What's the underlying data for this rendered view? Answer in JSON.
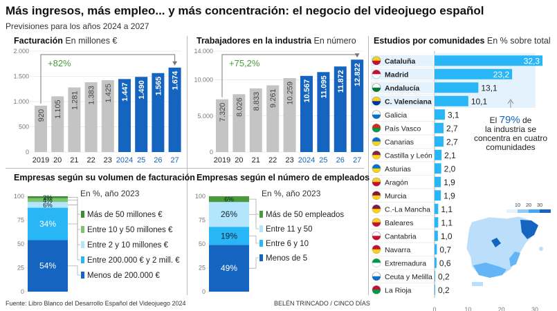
{
  "title": "Más ingresos, más empleo... y más concentración: el negocio del videojuego español",
  "subtitle": "Previsiones para los años 2024 a 2027",
  "footer": {
    "source": "Fuente: Libro Blanco del Desarrollo Español del Videojuego 2024",
    "credit": "BELÉN TRINCADO / CINCO DÍAS"
  },
  "colors": {
    "gray": "#c4c4c4",
    "blue": "#1565c0",
    "green": "#4a9a3c",
    "light_blue": "#29b6f6",
    "dark_blue": "#0d47a1"
  },
  "chart_data": [
    {
      "id": "facturacion",
      "type": "bar",
      "title": "Facturación",
      "unit": "En millones €",
      "categories": [
        "2019",
        "20",
        "21",
        "22",
        "23",
        "2024",
        "25",
        "26",
        "27"
      ],
      "values": [
        920,
        1105,
        1281,
        1383,
        1425,
        1447,
        1490,
        1565,
        1674
      ],
      "value_labels": [
        "920",
        "1.105",
        "1.281",
        "1.383",
        "1.425",
        "1.447",
        "1.490",
        "1.565",
        "1.674"
      ],
      "forecast_from": "2024",
      "yticks": [
        0,
        500,
        1000,
        1500,
        2000
      ],
      "ytick_labels": [
        "0",
        "500",
        "1.000",
        "1.500",
        "2.000"
      ],
      "ylim": [
        0,
        2000
      ],
      "annotation": "+82%"
    },
    {
      "id": "trabajadores",
      "type": "bar",
      "title": "Trabajadores en la industria",
      "unit": "En número",
      "categories": [
        "2019",
        "20",
        "21",
        "22",
        "23",
        "2024",
        "25",
        "26",
        "27"
      ],
      "values": [
        7320,
        8026,
        8833,
        9261,
        10259,
        10567,
        11095,
        11872,
        12822
      ],
      "value_labels": [
        "7.320",
        "8.026",
        "8.833",
        "9.261",
        "10.259",
        "10.567",
        "11.095",
        "11.872",
        "12.822"
      ],
      "forecast_from": "2024",
      "yticks": [
        0,
        5000,
        10000,
        14000
      ],
      "ytick_labels": [
        "0",
        "5.000",
        "10.000",
        "14.000"
      ],
      "ylim": [
        0,
        14000
      ],
      "annotation": "+75,2%"
    },
    {
      "id": "volumen",
      "type": "bar",
      "stacked": true,
      "title": "Empresas según su volumen de facturación",
      "unit": "En %, año 2023",
      "yticks": [
        0,
        25,
        50,
        75,
        100
      ],
      "ytick_labels": [
        "0",
        "25",
        "50",
        "75",
        "100"
      ],
      "ylim": [
        0,
        100
      ],
      "segments": [
        {
          "name": "Menos de 200.000 €",
          "value": 54,
          "label": "54%",
          "color": "#1565c0"
        },
        {
          "name": "Entre 200.000 € y 2 mill. €",
          "value": 34,
          "label": "34%",
          "color": "#29b6f6"
        },
        {
          "name": "Entre 2 y 10 millones €",
          "value": 6,
          "label": "6%",
          "color": "#b3e5fc"
        },
        {
          "name": "Entre 10 y 50 millones €",
          "value": 4,
          "label": "4%",
          "color": "#7cc36e"
        },
        {
          "name": "Más de 50 millones €",
          "value": 2,
          "label": "2%",
          "color": "#3d8b37"
        }
      ]
    },
    {
      "id": "empleados",
      "type": "bar",
      "stacked": true,
      "title": "Empresas según el número de empleados",
      "unit": "En %, año 2023",
      "yticks": [
        0,
        25,
        50,
        75,
        100
      ],
      "ytick_labels": [
        "0",
        "25",
        "50",
        "75",
        "100"
      ],
      "ylim": [
        0,
        100
      ],
      "segments": [
        {
          "name": "Menos de 5",
          "value": 49,
          "label": "49%",
          "color": "#1565c0"
        },
        {
          "name": "Entre 6 y 10",
          "value": 19,
          "label": "19%",
          "color": "#29b6f6"
        },
        {
          "name": "Entre 11 y 50",
          "value": 26,
          "label": "26%",
          "color": "#b3e5fc"
        },
        {
          "name": "Más de 50 empleados",
          "value": 6,
          "label": "6%",
          "color": "#4a9a3c"
        }
      ]
    },
    {
      "id": "comunidades",
      "type": "bar",
      "orientation": "horizontal",
      "title": "Estudios por comunidades",
      "unit": "En % sobre total",
      "xticks": [
        0,
        10,
        20,
        30
      ],
      "xtick_labels": [
        "0",
        "10",
        "20",
        "30"
      ],
      "xlim": [
        0,
        30
      ],
      "categories": [
        "Cataluña",
        "Madrid",
        "Andalucía",
        "C. Valenciana",
        "Galicia",
        "País Vasco",
        "Canarias",
        "Castilla y León",
        "Asturias",
        "Aragón",
        "Murcia",
        "C.-La Mancha",
        "Baleares",
        "Cantabria",
        "Navarra",
        "Extremadura",
        "Ceuta y Melilla",
        "La Rioja"
      ],
      "values": [
        32.3,
        23.2,
        13.1,
        10.1,
        3.1,
        2.7,
        2.7,
        2.1,
        2.0,
        1.9,
        1.9,
        1.1,
        1.1,
        1.0,
        0.7,
        0.6,
        0.2,
        0.2
      ],
      "value_labels": [
        "32,3",
        "23,2",
        "13,1",
        "10,1",
        "3,1",
        "2,7",
        "2,7",
        "2,1",
        "2,0",
        "1,9",
        "1,9",
        "1,1",
        "1,1",
        "1,0",
        "0,7",
        "0,6",
        "0,2",
        "0,2"
      ],
      "highlight_top": 4,
      "annotation_prefix": "El ",
      "annotation_pct": "79%",
      "annotation_rest": " de la industria se concentra en cuatro comunidades",
      "map_legend": [
        "10",
        "20",
        "30"
      ]
    }
  ]
}
